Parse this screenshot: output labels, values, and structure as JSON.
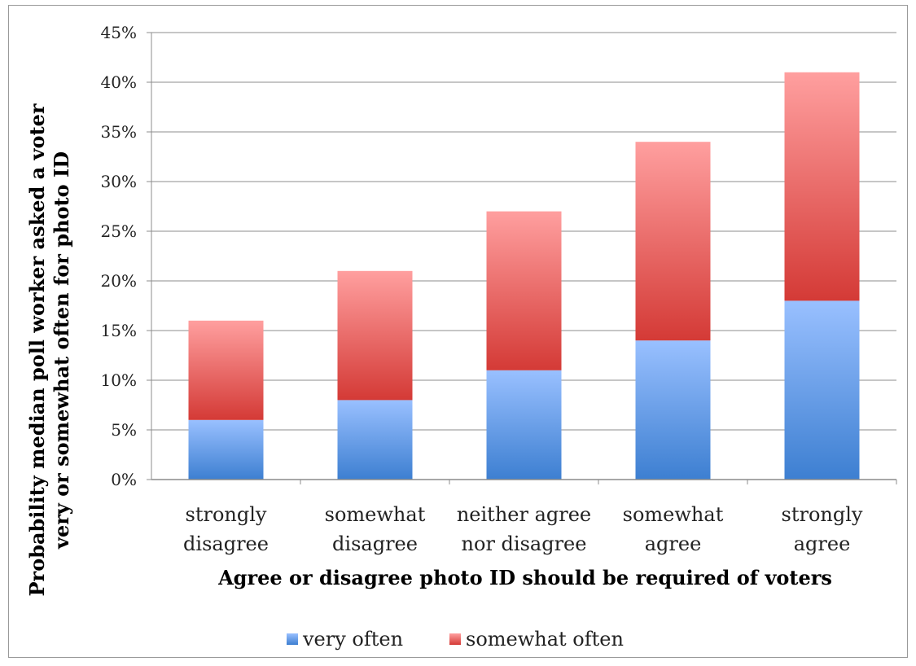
{
  "chart_data": {
    "type": "bar",
    "stacked": true,
    "categories": [
      [
        "strongly",
        "disagree"
      ],
      [
        "somewhat",
        "disagree"
      ],
      [
        "neither agree",
        "nor disagree"
      ],
      [
        "somewhat",
        "agree"
      ],
      [
        "strongly",
        "agree"
      ]
    ],
    "series": [
      {
        "name": "very often",
        "values": [
          6,
          8,
          11,
          14,
          18
        ],
        "color_light": "#99c0ff",
        "color_dark": "#3d7fd1"
      },
      {
        "name": "somewhat often",
        "values": [
          10,
          13,
          16,
          20,
          23
        ],
        "color_light": "#ff9f9f",
        "color_dark": "#d43a36"
      }
    ],
    "xlabel": "Agree or disagree photo ID should be required of voters",
    "ylabel": [
      "Probability median poll worker asked a voter",
      "very or somewhat often for photo ID"
    ],
    "ylim": [
      0,
      45
    ],
    "yticks": [
      0,
      5,
      10,
      15,
      20,
      25,
      30,
      35,
      40,
      45
    ],
    "ytick_suffix": "%",
    "grid": true,
    "legend_position": "bottom"
  }
}
